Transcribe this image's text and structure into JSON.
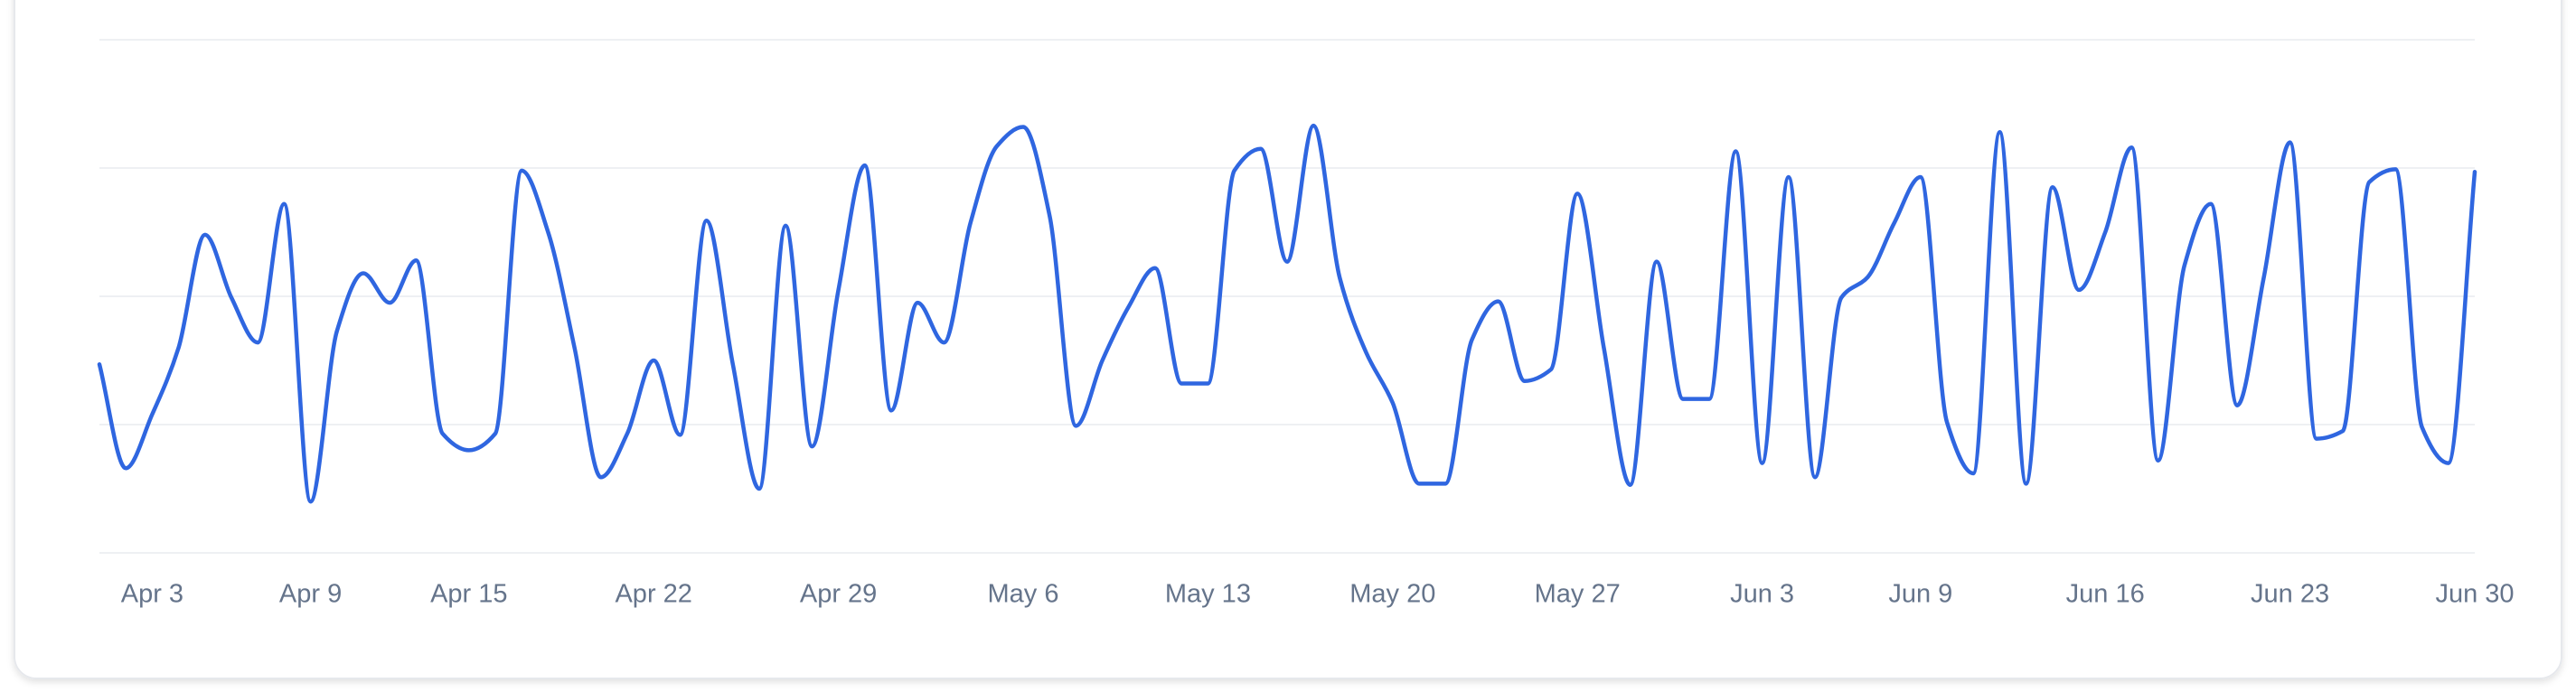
{
  "chart_data": {
    "type": "line",
    "categories": [
      null,
      null,
      "Apr 3",
      null,
      null,
      null,
      null,
      null,
      "Apr 9",
      null,
      null,
      null,
      null,
      null,
      "Apr 15",
      null,
      null,
      null,
      null,
      null,
      null,
      "Apr 22",
      null,
      null,
      null,
      null,
      null,
      null,
      "Apr 29",
      null,
      null,
      null,
      null,
      null,
      null,
      "May 6",
      null,
      null,
      null,
      null,
      null,
      null,
      "May 13",
      null,
      null,
      null,
      null,
      null,
      null,
      "May 20",
      null,
      null,
      null,
      null,
      null,
      null,
      "May 27",
      null,
      null,
      null,
      null,
      null,
      null,
      "Jun 3",
      null,
      null,
      null,
      null,
      null,
      "Jun 9",
      null,
      null,
      null,
      null,
      null,
      null,
      "Jun 16",
      null,
      null,
      null,
      null,
      null,
      null,
      "Jun 23",
      null,
      null,
      null,
      null,
      null,
      null,
      "Jun 30"
    ],
    "series": [
      {
        "color": "#2f66e0",
        "values": [
          147,
          66,
          108,
          160,
          248,
          199,
          164,
          272,
          40,
          173,
          218,
          195,
          228,
          93,
          80,
          93,
          298,
          250,
          160,
          59,
          93,
          150,
          92,
          259,
          147,
          50,
          255,
          83,
          205,
          302,
          111,
          195,
          164,
          257,
          317,
          332,
          263,
          99,
          150,
          192,
          222,
          132,
          132,
          298,
          315,
          227,
          333,
          214,
          156,
          117,
          54,
          54,
          166,
          196,
          134,
          143,
          280,
          160,
          53,
          227,
          120,
          120,
          313,
          70,
          293,
          59,
          199,
          215,
          257,
          293,
          102,
          62,
          328,
          54,
          285,
          205,
          250,
          316,
          72,
          224,
          272,
          115,
          214,
          320,
          89,
          95,
          289,
          299,
          98,
          70,
          297
        ]
      }
    ],
    "ylim": [
      0,
      400
    ],
    "yticks": [
      0,
      100,
      200,
      300,
      400
    ],
    "grid": true
  }
}
